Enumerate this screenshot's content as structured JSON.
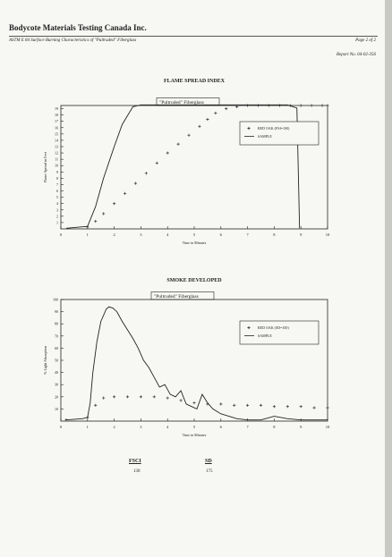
{
  "header": {
    "company": "Bodycote Materials Testing Canada Inc.",
    "subtitle": "ASTM E 84 Surface Burning Characteristics of \"Pultruded\" Fiberglass",
    "page": "Page 2 of 2",
    "report": "Report No. 04-02-356"
  },
  "colors": {
    "ink": "#222222",
    "paper": "#f7f7f4"
  },
  "chart_data": [
    {
      "type": "line",
      "title": "FLAME SPREAD INDEX",
      "annotation": "\"Pultruded\" Fiberglass",
      "xlabel": "Time in Minutes",
      "ylabel": "Flame Spread in Feet",
      "xlim": [
        0,
        10
      ],
      "ylim": [
        0,
        19.5
      ],
      "x_ticks": [
        "0",
        "1",
        "2",
        "3",
        "4",
        "5",
        "6",
        "7",
        "8",
        "9",
        "10"
      ],
      "y_ticks": [
        "1",
        "2",
        "3",
        "4",
        "5",
        "6",
        "7",
        "8",
        "9",
        "10",
        "11",
        "12",
        "13",
        "14",
        "15",
        "16",
        "17",
        "18",
        "19"
      ],
      "legend_position": "right",
      "series": [
        {
          "name": "RED OAK (FSI=100)",
          "style": "dotted-cross",
          "x": [
            1.0,
            1.3,
            1.6,
            2.0,
            2.4,
            2.8,
            3.2,
            3.6,
            4.0,
            4.4,
            4.8,
            5.2,
            5.5,
            5.8,
            6.2,
            6.6,
            7.0,
            7.4,
            7.8,
            8.2,
            8.6,
            9.0,
            9.4,
            9.8,
            10.0
          ],
          "y": [
            0.3,
            1.2,
            2.4,
            4.0,
            5.6,
            7.2,
            8.8,
            10.4,
            12.0,
            13.4,
            14.8,
            16.2,
            17.3,
            18.3,
            19.0,
            19.3,
            19.5,
            19.5,
            19.5,
            19.5,
            19.5,
            19.5,
            19.5,
            19.5,
            19.5
          ]
        },
        {
          "name": "SAMPLE",
          "style": "solid",
          "x": [
            0.2,
            1.0,
            1.3,
            1.6,
            2.0,
            2.3,
            2.7,
            3.0,
            8.5,
            8.85,
            8.95
          ],
          "y": [
            0.1,
            0.4,
            3.5,
            8.0,
            13.0,
            16.5,
            19.3,
            19.6,
            19.6,
            19.1,
            0.1
          ]
        }
      ]
    },
    {
      "type": "line",
      "title": "SMOKE DEVELOPED",
      "annotation": "\"Pultruded\" Fiberglass",
      "xlabel": "Time in Minutes",
      "ylabel": "% Light Absorption",
      "xlim": [
        0,
        10
      ],
      "ylim": [
        0,
        100
      ],
      "x_ticks": [
        "0",
        "1",
        "2",
        "3",
        "4",
        "5",
        "6",
        "7",
        "8",
        "9",
        "10"
      ],
      "y_ticks": [
        "10",
        "20",
        "30",
        "40",
        "50",
        "60",
        "70",
        "80",
        "90",
        "100"
      ],
      "legend_position": "right",
      "series": [
        {
          "name": "RED OAK (SD=100)",
          "style": "dotted-cross",
          "x": [
            0.2,
            1.0,
            1.3,
            1.6,
            2.0,
            2.5,
            3.0,
            3.5,
            4.0,
            4.5,
            5.0,
            5.5,
            6.0,
            6.5,
            7.0,
            7.5,
            8.0,
            8.5,
            9.0,
            9.5,
            10.0
          ],
          "y": [
            1,
            3,
            13,
            19,
            20,
            20,
            20,
            20,
            19,
            17,
            15,
            14,
            14,
            13,
            13,
            13,
            12,
            12,
            12,
            11,
            11
          ]
        },
        {
          "name": "SAMPLE",
          "style": "solid",
          "x": [
            0.2,
            0.8,
            1.0,
            1.1,
            1.2,
            1.35,
            1.5,
            1.7,
            1.8,
            1.95,
            2.1,
            2.3,
            2.5,
            2.7,
            2.9,
            3.1,
            3.3,
            3.5,
            3.7,
            3.9,
            4.1,
            4.3,
            4.5,
            4.7,
            4.9,
            5.1,
            5.3,
            5.5,
            5.7,
            6.0,
            6.3,
            6.6,
            7.0,
            7.5,
            8.0,
            8.5,
            9.0,
            9.5,
            10.0
          ],
          "y": [
            1,
            2,
            3,
            15,
            40,
            65,
            82,
            92,
            94,
            93,
            90,
            82,
            75,
            68,
            60,
            50,
            44,
            36,
            28,
            30,
            22,
            20,
            25,
            14,
            12,
            10,
            22,
            15,
            10,
            6,
            4,
            2,
            1,
            1,
            4,
            2,
            1,
            1,
            1
          ]
        }
      ]
    }
  ],
  "summary": {
    "fsci_label": "FSCI",
    "fsci_value": "130",
    "sd_label": "SD",
    "sd_value": "175"
  }
}
